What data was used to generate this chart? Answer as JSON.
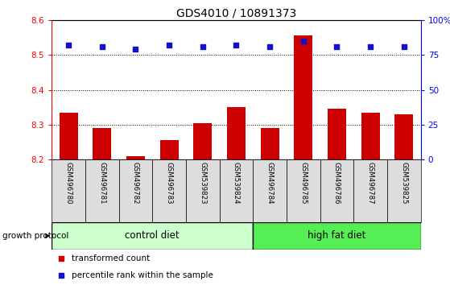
{
  "title": "GDS4010 / 10891373",
  "samples": [
    "GSM496780",
    "GSM496781",
    "GSM496782",
    "GSM496783",
    "GSM539823",
    "GSM539824",
    "GSM496784",
    "GSM496785",
    "GSM496786",
    "GSM496787",
    "GSM539825"
  ],
  "transformed_counts": [
    8.335,
    8.29,
    8.21,
    8.255,
    8.305,
    8.35,
    8.29,
    8.555,
    8.345,
    8.335,
    8.33
  ],
  "percentile_ranks": [
    82,
    81,
    79,
    82,
    81,
    82,
    81,
    85,
    81,
    81,
    81
  ],
  "ylim_left": [
    8.2,
    8.6
  ],
  "ylim_right": [
    0,
    100
  ],
  "yticks_left": [
    8.2,
    8.3,
    8.4,
    8.5,
    8.6
  ],
  "yticks_right": [
    0,
    25,
    50,
    75,
    100
  ],
  "ytick_labels_right": [
    "0",
    "25",
    "50",
    "75",
    "100%"
  ],
  "bar_color": "#cc0000",
  "dot_color": "#1111cc",
  "control_diet_label": "control diet",
  "high_fat_diet_label": "high fat diet",
  "growth_protocol_label": "growth protocol",
  "legend_bar_label": "transformed count",
  "legend_dot_label": "percentile rank within the sample",
  "control_diet_color": "#ccffcc",
  "high_fat_diet_color": "#55ee55",
  "label_bg_color": "#dddddd",
  "bar_bottom": 8.2,
  "n_control": 6,
  "n_hfd": 5
}
